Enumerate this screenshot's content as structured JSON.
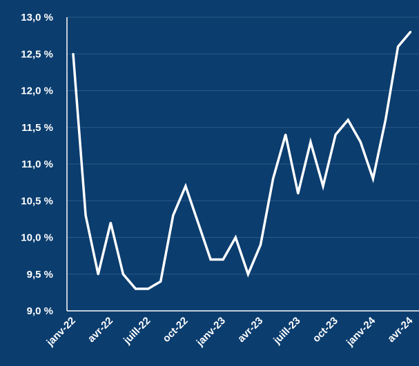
{
  "colors": {
    "background": "#0b3d6e",
    "line": "#ffffff",
    "grid": "#2a5a88",
    "axis": "#ffffff"
  },
  "chart_data": {
    "type": "line",
    "title": "",
    "xlabel": "",
    "ylabel": "",
    "ylim": [
      9.0,
      13.0
    ],
    "grid": true,
    "y_tick_labels": [
      "9,0 %",
      "9,5 %",
      "10,0 %",
      "10,5 %",
      "11,0 %",
      "11,5 %",
      "12,0 %",
      "12,5 %",
      "13,0 %"
    ],
    "x_tick_labels": [
      "janv-22",
      "avr-22",
      "juill-22",
      "oct-22",
      "janv-23",
      "avr-23",
      "juill-23",
      "oct-23",
      "janv-24",
      "avr-24"
    ],
    "x": [
      "janv-22",
      "févr-22",
      "mars-22",
      "avr-22",
      "mai-22",
      "juin-22",
      "juil-22",
      "août-22",
      "sept-22",
      "oct-22",
      "nov-22",
      "déc-22",
      "janv-23",
      "févr-23",
      "mars-23",
      "avr-23",
      "mai-23",
      "juin-23",
      "juil-23",
      "août-23",
      "sept-23",
      "oct-23",
      "nov-23",
      "déc-23",
      "janv-24",
      "févr-24",
      "mars-24",
      "avr-24"
    ],
    "series": [
      {
        "values": [
          12.5,
          10.3,
          9.5,
          10.2,
          9.5,
          9.3,
          9.3,
          9.4,
          10.3,
          10.7,
          10.2,
          9.7,
          9.7,
          10.0,
          9.5,
          9.9,
          10.8,
          11.4,
          10.6,
          11.3,
          10.7,
          11.4,
          11.6,
          11.3,
          10.8,
          11.6,
          12.6,
          12.8
        ]
      }
    ]
  }
}
